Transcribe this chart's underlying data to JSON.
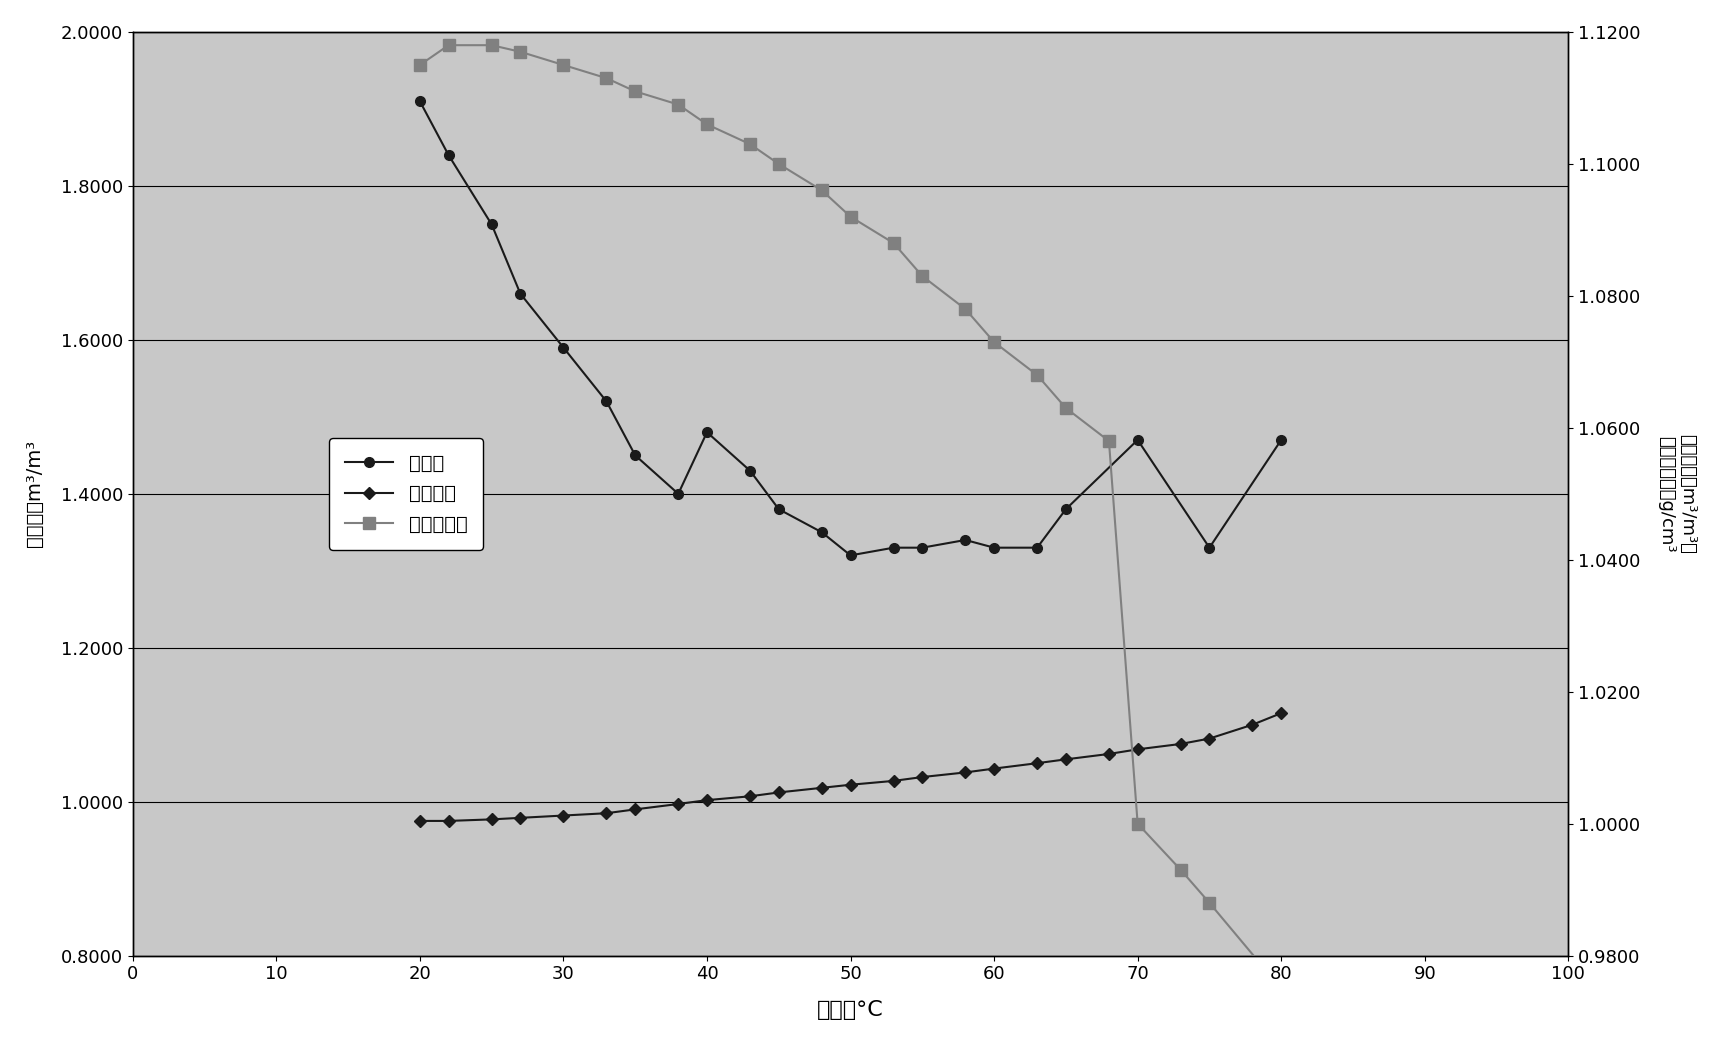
{
  "gas_water_x": [
    20,
    22,
    25,
    27,
    30,
    33,
    35,
    38,
    40,
    43,
    45,
    48,
    50,
    53,
    55,
    58,
    60,
    63,
    65,
    70,
    75,
    80
  ],
  "gas_water_y": [
    1.91,
    1.84,
    1.75,
    1.66,
    1.59,
    1.52,
    1.45,
    1.4,
    1.48,
    1.43,
    1.38,
    1.35,
    1.32,
    1.33,
    1.33,
    1.34,
    1.33,
    1.33,
    1.38,
    1.47,
    1.33,
    1.47
  ],
  "volume_factor_x": [
    20,
    22,
    25,
    27,
    30,
    33,
    35,
    38,
    40,
    43,
    45,
    48,
    50,
    53,
    55,
    58,
    60,
    63,
    65,
    68,
    70,
    73,
    75,
    78,
    80
  ],
  "volume_factor_y": [
    0.975,
    0.975,
    0.977,
    0.979,
    0.982,
    0.985,
    0.99,
    0.997,
    1.002,
    1.007,
    1.012,
    1.018,
    1.022,
    1.027,
    1.032,
    1.038,
    1.043,
    1.05,
    1.055,
    1.062,
    1.068,
    1.075,
    1.082,
    1.1,
    1.115
  ],
  "density_x": [
    20,
    22,
    25,
    27,
    30,
    33,
    35,
    38,
    40,
    43,
    45,
    48,
    50,
    53,
    55,
    58,
    60,
    63,
    65,
    68,
    70,
    73,
    75,
    80
  ],
  "density_y": [
    1.115,
    1.118,
    1.118,
    1.117,
    1.115,
    1.113,
    1.111,
    1.109,
    1.106,
    1.103,
    1.1,
    1.096,
    1.092,
    1.088,
    1.083,
    1.078,
    1.073,
    1.068,
    1.063,
    1.058,
    1.0,
    0.993,
    0.988,
    0.975
  ],
  "xlim": [
    0,
    100
  ],
  "ylim_left": [
    0.8,
    2.0
  ],
  "ylim_right": [
    0.98,
    1.12
  ],
  "xlabel": "温度，°C",
  "ylabel_left": "气水比，m³/m³",
  "ylabel_right_line1": "体积系数，m³/m³；",
  "ylabel_right_line2": "地层水密度，g/cm³",
  "legend_labels": [
    "气水比",
    "体积系数",
    "地层水密度"
  ],
  "bg_color": "#c8c8c8",
  "outer_bg": "#ffffff",
  "line_color": "#1a1a1a",
  "density_color": "#808080",
  "xticks": [
    0,
    10,
    20,
    30,
    40,
    50,
    60,
    70,
    80,
    90,
    100
  ],
  "yticks_left": [
    0.8,
    1.0,
    1.2,
    1.4,
    1.6,
    1.8,
    2.0
  ],
  "yticks_right": [
    0.98,
    1.0,
    1.02,
    1.04,
    1.06,
    1.08,
    1.1,
    1.12
  ]
}
